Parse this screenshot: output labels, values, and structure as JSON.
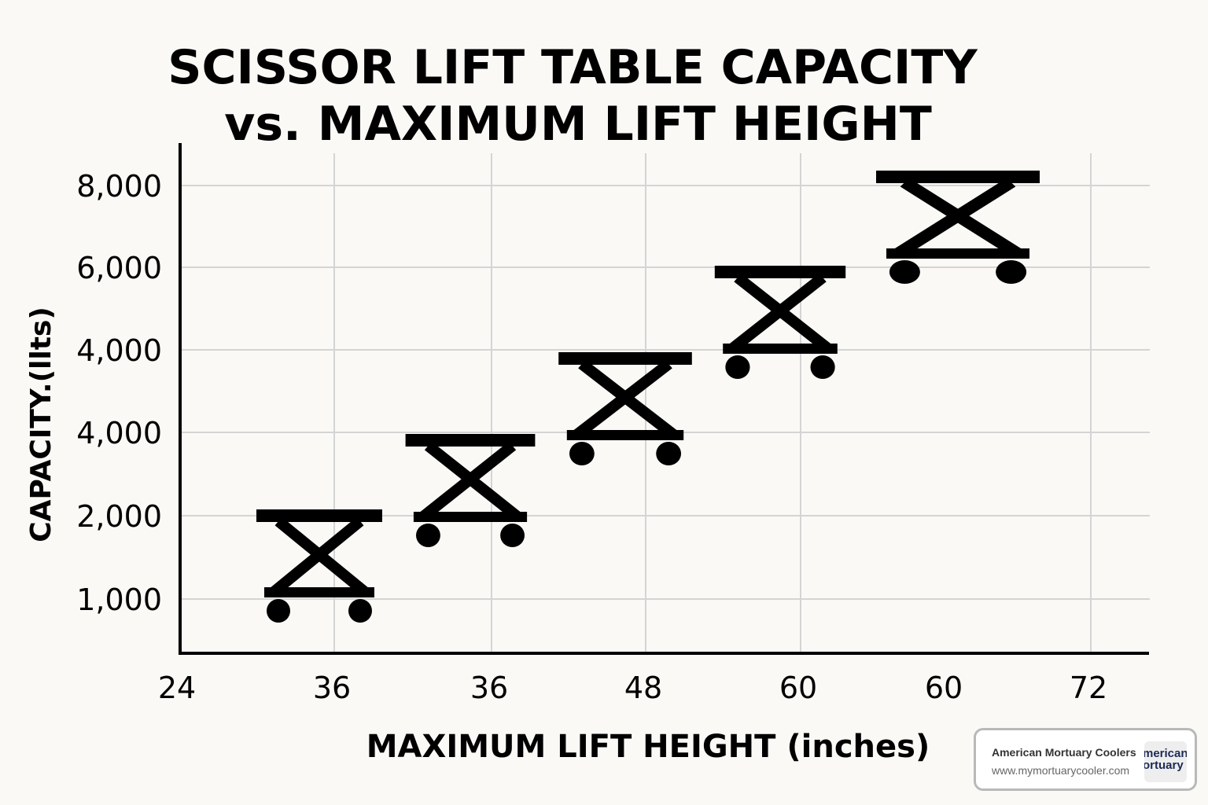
{
  "chart_data": {
    "type": "scatter",
    "marker": "scissor-lift-icon",
    "title": [
      "SCISSOR LIFT TABLE CAPACITY",
      "vs. MAXIMUM LIFT HEIGHT"
    ],
    "xlabel": "MAXIMUM LIFT HEIGHT (inches)",
    "ylabel": "CAPACITY.(llts)",
    "x_ticks": [
      "24",
      "36",
      "36",
      "48",
      "60",
      "60",
      "72"
    ],
    "y_ticks": [
      "8,000",
      "6,000",
      "4,000",
      "4,000",
      "2,000",
      "1,000"
    ],
    "grid": true,
    "points": [
      {
        "x": "36",
        "y": "2,000"
      },
      {
        "x": "36",
        "y": "4,000"
      },
      {
        "x": "48",
        "y": "4,000"
      },
      {
        "x": "60",
        "y": "6,000"
      },
      {
        "x": "60",
        "y": "8,000"
      }
    ],
    "colors": {
      "background": "#faf9f6",
      "marks": "#000000",
      "grid": "#d4d4d4"
    }
  },
  "watermark": {
    "name": "American Mortuary Coolers",
    "url": "www.mymortuarycooler.com",
    "logo_text": [
      "merican",
      "ortuary"
    ]
  }
}
